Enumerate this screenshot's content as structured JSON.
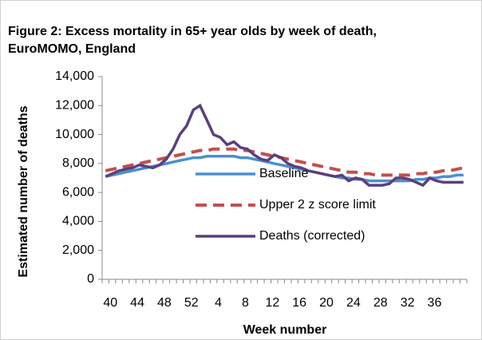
{
  "chart_data": {
    "type": "line",
    "title": "Figure 2: Excess mortality in 65+ year olds by week of death,",
    "subtitle": "EuroMOMO, England",
    "x_label": "Week number",
    "y_label": "Estimated number of deaths",
    "categories": [
      "40",
      null,
      null,
      null,
      "44",
      null,
      null,
      null,
      "48",
      null,
      null,
      null,
      "52",
      null,
      null,
      null,
      "4",
      null,
      null,
      null,
      "8",
      null,
      null,
      null,
      "12",
      null,
      null,
      null,
      "16",
      null,
      null,
      null,
      "20",
      null,
      null,
      null,
      "24",
      null,
      null,
      null,
      "28",
      null,
      null,
      null,
      "32",
      null,
      null,
      null,
      "36",
      null,
      null,
      null,
      null,
      null
    ],
    "series": [
      {
        "name": "Baseline",
        "color": "#4a8fd0",
        "dash": false,
        "values": [
          7100,
          7200,
          7300,
          7400,
          7500,
          7600,
          7700,
          7800,
          7900,
          8000,
          8100,
          8200,
          8300,
          8400,
          8400,
          8500,
          8500,
          8500,
          8500,
          8500,
          8400,
          8400,
          8300,
          8200,
          8100,
          8000,
          7900,
          7800,
          7700,
          7600,
          7500,
          7400,
          7300,
          7200,
          7100,
          7000,
          7000,
          6900,
          6900,
          6800,
          6800,
          6800,
          6800,
          6800,
          6800,
          6800,
          6900,
          6900,
          7000,
          7000,
          7100,
          7100,
          7200,
          7200
        ]
      },
      {
        "name": "Upper 2 z score limit",
        "color": "#c0504d",
        "dash": true,
        "values": [
          7500,
          7600,
          7700,
          7800,
          7900,
          8000,
          8100,
          8200,
          8300,
          8400,
          8500,
          8600,
          8700,
          8800,
          8900,
          8900,
          9000,
          9000,
          9000,
          9000,
          8900,
          8900,
          8800,
          8700,
          8600,
          8500,
          8400,
          8300,
          8200,
          8100,
          8000,
          7900,
          7800,
          7700,
          7600,
          7500,
          7400,
          7400,
          7300,
          7300,
          7200,
          7200,
          7200,
          7200,
          7200,
          7200,
          7300,
          7300,
          7400,
          7400,
          7500,
          7500,
          7600,
          7700
        ]
      },
      {
        "name": "Deaths (corrected)",
        "color": "#5b3f7d",
        "dash": false,
        "values": [
          7100,
          7300,
          7500,
          7600,
          7700,
          7900,
          7800,
          7700,
          7900,
          8300,
          9000,
          10000,
          10600,
          11700,
          12000,
          11000,
          10000,
          9800,
          9300,
          9500,
          9100,
          9000,
          8600,
          8300,
          8200,
          8600,
          8400,
          8000,
          7800,
          7700,
          7500,
          7400,
          7300,
          7200,
          7100,
          7200,
          6800,
          7000,
          6900,
          6500,
          6500,
          6500,
          6600,
          7000,
          7000,
          6900,
          6700,
          6500,
          7000,
          6800,
          6700,
          6700,
          6700,
          6700
        ]
      }
    ],
    "ylim": [
      0,
      14000
    ],
    "yticks": [
      0,
      {
        "value": 2000,
        "label": "2,000"
      },
      {
        "value": 4000,
        "label": "4,000"
      },
      {
        "value": 6000,
        "label": "6,000"
      },
      {
        "value": 8000,
        "label": "8,000"
      },
      {
        "value": 10000,
        "label": "10,000"
      },
      {
        "value": 12000,
        "label": "12,000"
      },
      {
        "value": 14000,
        "label": "14,000"
      }
    ],
    "grid": false,
    "legend": "center"
  }
}
